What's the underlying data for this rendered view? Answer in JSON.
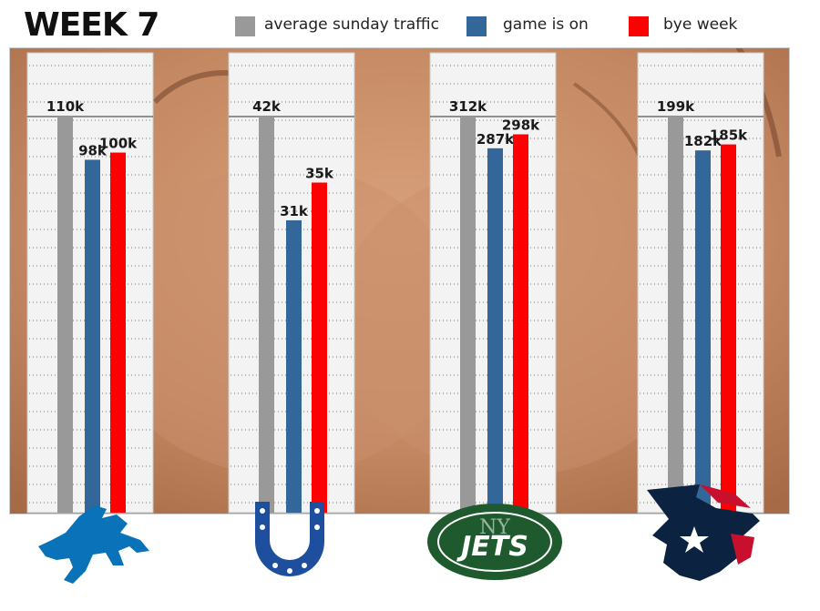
{
  "header": {
    "title": "WEEK 7"
  },
  "legend": [
    {
      "label": "average sunday traffic",
      "color": "#999999"
    },
    {
      "label": "game is on",
      "color": "#336699"
    },
    {
      "label": "bye week",
      "color": "#ff0000"
    }
  ],
  "colors": {
    "average": "#999999",
    "game": "#336699",
    "bye": "#ff0000",
    "panel": "#f3f3f3",
    "skin": "#c98f6a"
  },
  "chart_data": {
    "type": "bar",
    "categories": [
      "Detroit Lions",
      "Indianapolis Colts",
      "New York Jets",
      "Houston Texans"
    ],
    "series": [
      {
        "name": "average sunday traffic",
        "values": [
          110,
          42,
          312,
          199
        ],
        "labels": [
          "110k",
          "42k",
          "312k",
          "199k"
        ]
      },
      {
        "name": "game is on",
        "values": [
          98,
          31,
          287,
          182
        ],
        "labels": [
          "98k",
          "31k",
          "287k",
          "182k"
        ]
      },
      {
        "name": "bye week",
        "values": [
          100,
          35,
          298,
          185
        ],
        "labels": [
          "100k",
          "35k",
          "298k",
          "185k"
        ]
      }
    ],
    "grid": true,
    "legend_position": "top"
  },
  "logos": [
    {
      "team": "Detroit Lions",
      "icon": "lions-logo-icon"
    },
    {
      "team": "Indianapolis Colts",
      "icon": "colts-logo-icon"
    },
    {
      "team": "New York Jets",
      "icon": "jets-logo-icon",
      "text": "JETS",
      "monogram": "NY"
    },
    {
      "team": "Houston Texans",
      "icon": "texans-logo-icon"
    }
  ]
}
